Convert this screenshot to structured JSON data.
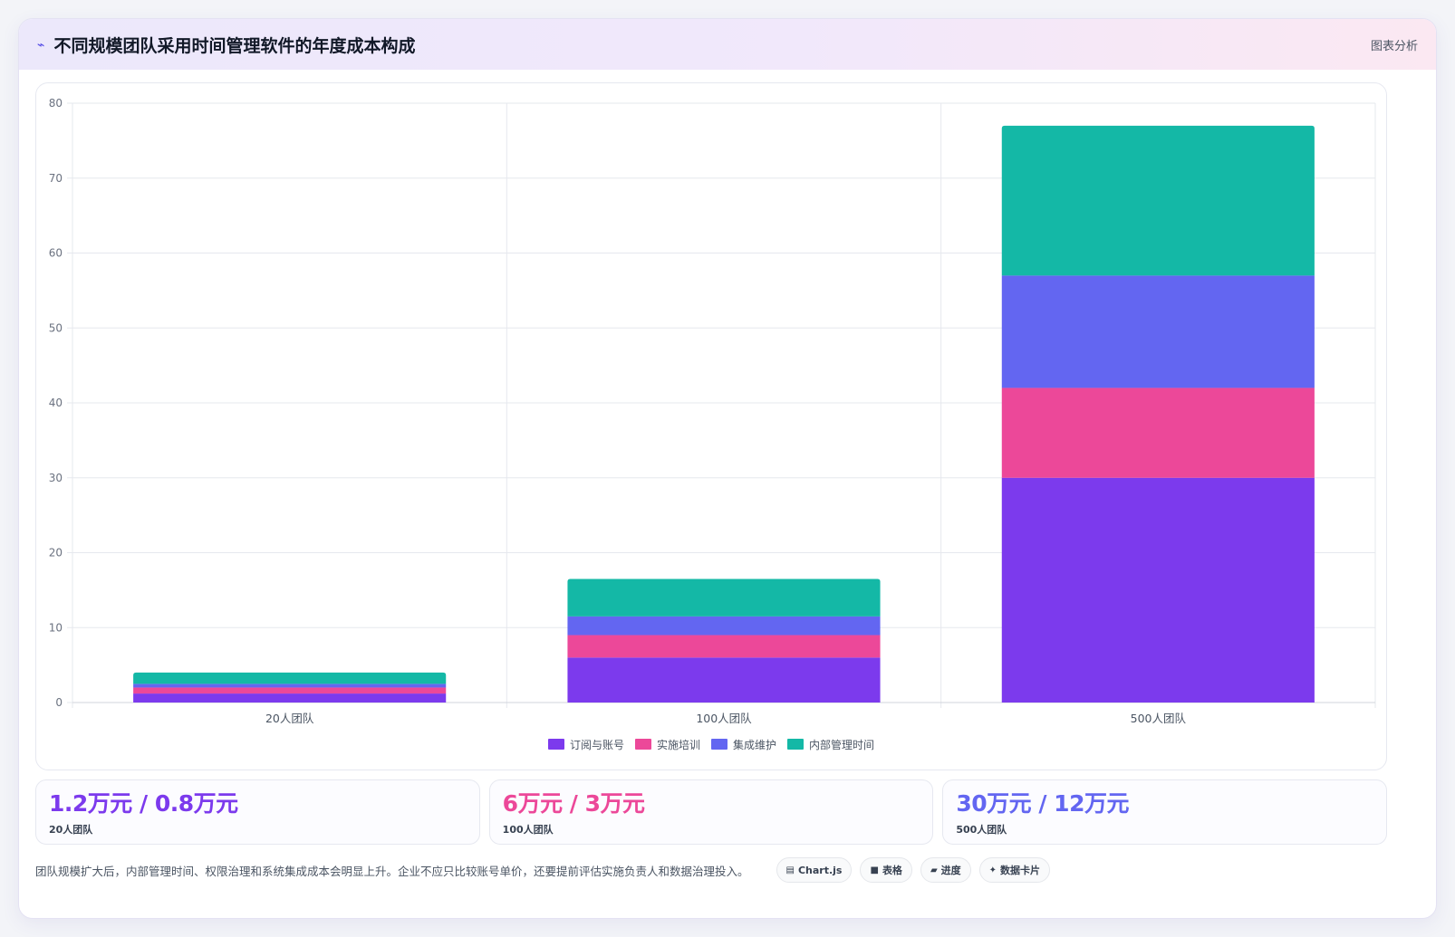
{
  "header": {
    "icon": "line-chart-icon",
    "title": "不同规模团队采用时间管理软件的年度成本构成",
    "tag": "图表分析"
  },
  "chart_data": {
    "type": "bar",
    "stacked": true,
    "title": "",
    "xlabel": "",
    "ylabel": "",
    "categories": [
      "20人团队",
      "100人团队",
      "500人团队"
    ],
    "ylim": [
      0,
      80
    ],
    "yticks": [
      0,
      10,
      20,
      30,
      40,
      50,
      60,
      70,
      80
    ],
    "grid": true,
    "legend_position": "bottom",
    "series": [
      {
        "name": "订阅与账号",
        "color": "#7c3aed",
        "values": [
          1.2,
          6,
          30
        ]
      },
      {
        "name": "实施培训",
        "color": "#ec4899",
        "values": [
          0.8,
          3,
          12
        ]
      },
      {
        "name": "集成维护",
        "color": "#6366f1",
        "values": [
          0.5,
          2.5,
          15
        ]
      },
      {
        "name": "内部管理时间",
        "color": "#14b8a6",
        "values": [
          1.5,
          5,
          20
        ]
      }
    ]
  },
  "stats": [
    {
      "value": "1.2万元 / 0.8万元",
      "label": "20人团队",
      "color": "#7c3aed"
    },
    {
      "value": "6万元 / 3万元",
      "label": "100人团队",
      "color": "#ec4899"
    },
    {
      "value": "30万元 / 12万元",
      "label": "500人团队",
      "color": "#6366f1"
    }
  ],
  "footer": {
    "note": "团队规模扩大后，内部管理时间、权限治理和系统集成成本会明显上升。企业不应只比较账号单价，还要提前评估实施负责人和数据治理投入。",
    "tags": [
      {
        "icon": "chart-icon",
        "glyph": "▤",
        "label": "Chart.js"
      },
      {
        "icon": "table-icon",
        "glyph": "■",
        "label": "表格"
      },
      {
        "icon": "progress-icon",
        "glyph": "▰",
        "label": "进度"
      },
      {
        "icon": "sparkle-icon",
        "glyph": "✦",
        "label": "数据卡片"
      }
    ]
  }
}
